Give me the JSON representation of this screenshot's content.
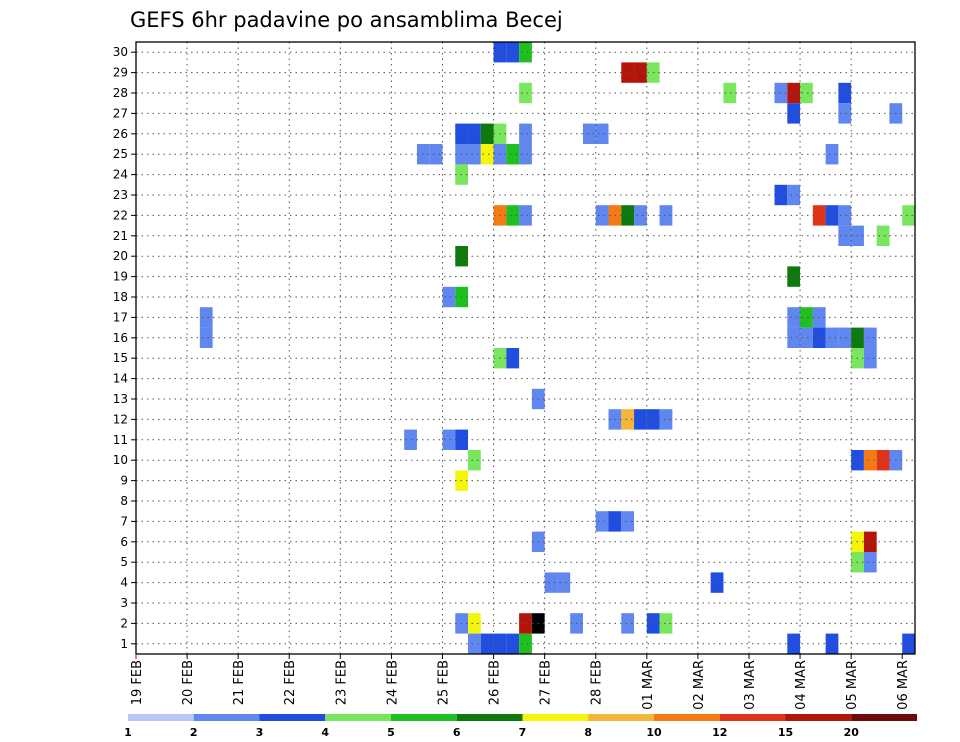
{
  "chart_data": {
    "type": "heatmap",
    "title": "GEFS 6hr padavine po ansamblima Becej",
    "y_ticks": [
      "1",
      "2",
      "3",
      "4",
      "5",
      "6",
      "7",
      "8",
      "9",
      "10",
      "11",
      "12",
      "13",
      "14",
      "15",
      "16",
      "17",
      "18",
      "19",
      "20",
      "21",
      "22",
      "23",
      "24",
      "25",
      "26",
      "27",
      "28",
      "29",
      "30"
    ],
    "x_ticks": [
      "19 FEB",
      "20 FEB",
      "21 FEB",
      "22 FEB",
      "23 FEB",
      "24 FEB",
      "25 FEB",
      "26 FEB",
      "27 FEB",
      "28 FEB",
      "01 MAR",
      "02 MAR",
      "03 MAR",
      "04 MAR",
      "05 MAR",
      "06 MAR"
    ],
    "x_range_days": [
      0,
      15.25
    ],
    "y_range": [
      0.5,
      30.5
    ],
    "grid": true,
    "colorbar": {
      "labels": [
        "1",
        "2",
        "3",
        "4",
        "5",
        "6",
        "7",
        "8",
        "10",
        "12",
        "15",
        "20"
      ],
      "colors": [
        "#b7c5f7",
        "#5f87ef",
        "#1f4ee0",
        "#7ae65e",
        "#1fbf1f",
        "#0e7a0e",
        "#f5f50a",
        "#f5b53a",
        "#f57a14",
        "#e0341a",
        "#b4140a",
        "#6e0a0a"
      ]
    },
    "cells": [
      [
        30,
        7,
        2
      ],
      [
        30,
        7.25,
        2
      ],
      [
        30,
        7.5,
        4
      ],
      [
        29,
        9.5,
        10
      ],
      [
        29,
        9.75,
        10
      ],
      [
        29,
        10,
        3
      ],
      [
        28,
        7.5,
        3
      ],
      [
        28,
        11.5,
        3
      ],
      [
        28,
        12.5,
        1
      ],
      [
        28,
        12.75,
        10
      ],
      [
        28,
        13,
        3
      ],
      [
        28,
        13.75,
        2
      ],
      [
        27,
        12.75,
        2
      ],
      [
        27,
        13.75,
        1
      ],
      [
        27,
        14.75,
        1
      ],
      [
        26,
        6.25,
        2
      ],
      [
        26,
        6.5,
        2
      ],
      [
        26,
        6.75,
        5
      ],
      [
        26,
        7,
        3
      ],
      [
        26,
        7.5,
        1
      ],
      [
        26,
        8.75,
        1
      ],
      [
        26,
        9,
        1
      ],
      [
        25,
        5.5,
        1
      ],
      [
        25,
        5.75,
        1
      ],
      [
        25,
        6.25,
        1
      ],
      [
        25,
        6.5,
        1
      ],
      [
        25,
        6.75,
        6
      ],
      [
        25,
        7,
        1
      ],
      [
        25,
        7.25,
        4
      ],
      [
        25,
        7.5,
        1
      ],
      [
        25,
        13.5,
        1
      ],
      [
        24,
        6.25,
        3
      ],
      [
        23,
        12.5,
        2
      ],
      [
        23,
        12.75,
        1
      ],
      [
        22,
        7,
        8
      ],
      [
        22,
        7.25,
        4
      ],
      [
        22,
        7.5,
        1
      ],
      [
        22,
        9,
        1
      ],
      [
        22,
        9.25,
        8
      ],
      [
        22,
        9.5,
        5
      ],
      [
        22,
        9.75,
        1
      ],
      [
        22,
        10.25,
        1
      ],
      [
        22,
        13.25,
        9
      ],
      [
        22,
        13.5,
        2
      ],
      [
        22,
        13.75,
        1
      ],
      [
        22,
        15,
        3
      ],
      [
        21,
        13.75,
        1
      ],
      [
        21,
        14,
        1
      ],
      [
        21,
        14.5,
        3
      ],
      [
        20,
        6.25,
        5
      ],
      [
        19,
        12.75,
        5
      ],
      [
        18,
        6,
        1
      ],
      [
        18,
        6.25,
        4
      ],
      [
        17,
        1.25,
        1
      ],
      [
        17,
        12.75,
        1
      ],
      [
        17,
        13,
        4
      ],
      [
        17,
        13.25,
        1
      ],
      [
        16,
        1.25,
        1
      ],
      [
        16,
        12.75,
        1
      ],
      [
        16,
        13,
        1
      ],
      [
        16,
        13.25,
        2
      ],
      [
        16,
        13.5,
        1
      ],
      [
        16,
        13.75,
        1
      ],
      [
        16,
        14,
        5
      ],
      [
        16,
        14.25,
        1
      ],
      [
        15,
        7,
        3
      ],
      [
        15,
        7.25,
        2
      ],
      [
        15,
        14,
        3
      ],
      [
        15,
        14.25,
        1
      ],
      [
        13,
        7.75,
        1
      ],
      [
        12,
        9.25,
        1
      ],
      [
        12,
        9.5,
        7
      ],
      [
        12,
        9.75,
        2
      ],
      [
        12,
        10,
        2
      ],
      [
        12,
        10.25,
        1
      ],
      [
        11,
        5.25,
        1
      ],
      [
        11,
        6,
        1
      ],
      [
        11,
        6.25,
        2
      ],
      [
        10,
        6.5,
        3
      ],
      [
        10,
        14,
        2
      ],
      [
        10,
        14.25,
        8
      ],
      [
        10,
        14.5,
        9
      ],
      [
        10,
        14.75,
        1
      ],
      [
        9,
        6.25,
        6
      ],
      [
        7,
        9,
        1
      ],
      [
        7,
        9.25,
        2
      ],
      [
        7,
        9.5,
        1
      ],
      [
        6,
        7.75,
        1
      ],
      [
        6,
        14,
        6
      ],
      [
        6,
        14.25,
        10
      ],
      [
        5,
        14,
        3
      ],
      [
        5,
        14.25,
        1
      ],
      [
        4,
        8,
        1
      ],
      [
        4,
        8.25,
        1
      ],
      [
        4,
        11.25,
        2
      ],
      [
        2,
        6.25,
        1
      ],
      [
        2,
        6.5,
        6
      ],
      [
        2,
        7.5,
        10
      ],
      [
        2,
        7.75,
        12
      ],
      [
        2,
        8.5,
        1
      ],
      [
        2,
        9.5,
        1
      ],
      [
        2,
        10,
        2
      ],
      [
        2,
        10.25,
        3
      ],
      [
        1,
        6.5,
        1
      ],
      [
        1,
        6.75,
        2
      ],
      [
        1,
        7,
        2
      ],
      [
        1,
        7.25,
        2
      ],
      [
        1,
        7.5,
        4
      ],
      [
        1,
        12.75,
        2
      ],
      [
        1,
        13.5,
        2
      ],
      [
        1,
        15,
        2
      ]
    ]
  }
}
